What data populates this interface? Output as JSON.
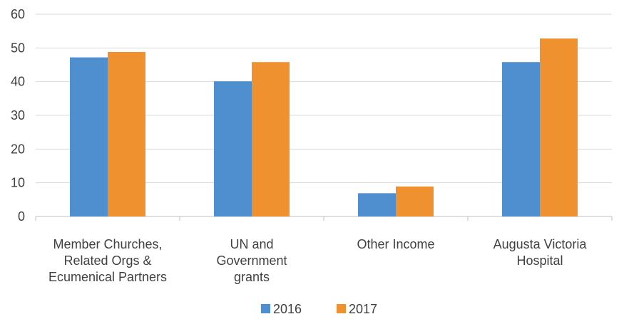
{
  "chart_data": {
    "type": "bar",
    "categories": [
      [
        "Member Churches,",
        "Related Orgs &",
        "Ecumenical Partners"
      ],
      [
        "UN and",
        "Government",
        "grants"
      ],
      [
        "Other Income"
      ],
      [
        "Augusta Victoria",
        "Hospital"
      ]
    ],
    "series": [
      {
        "name": "2016",
        "values": [
          47.2,
          40.1,
          6.9,
          45.8
        ],
        "color": "#4f8fd0"
      },
      {
        "name": "2017",
        "values": [
          48.8,
          45.8,
          8.9,
          52.8
        ],
        "color": "#f0912f"
      }
    ],
    "y_ticks": [
      "0",
      "10",
      "20",
      "30",
      "40",
      "50",
      "60"
    ],
    "ylim": [
      0,
      60
    ],
    "grid": true,
    "gridline_color": "#d9d9d9",
    "legend_position": "bottom-center"
  }
}
